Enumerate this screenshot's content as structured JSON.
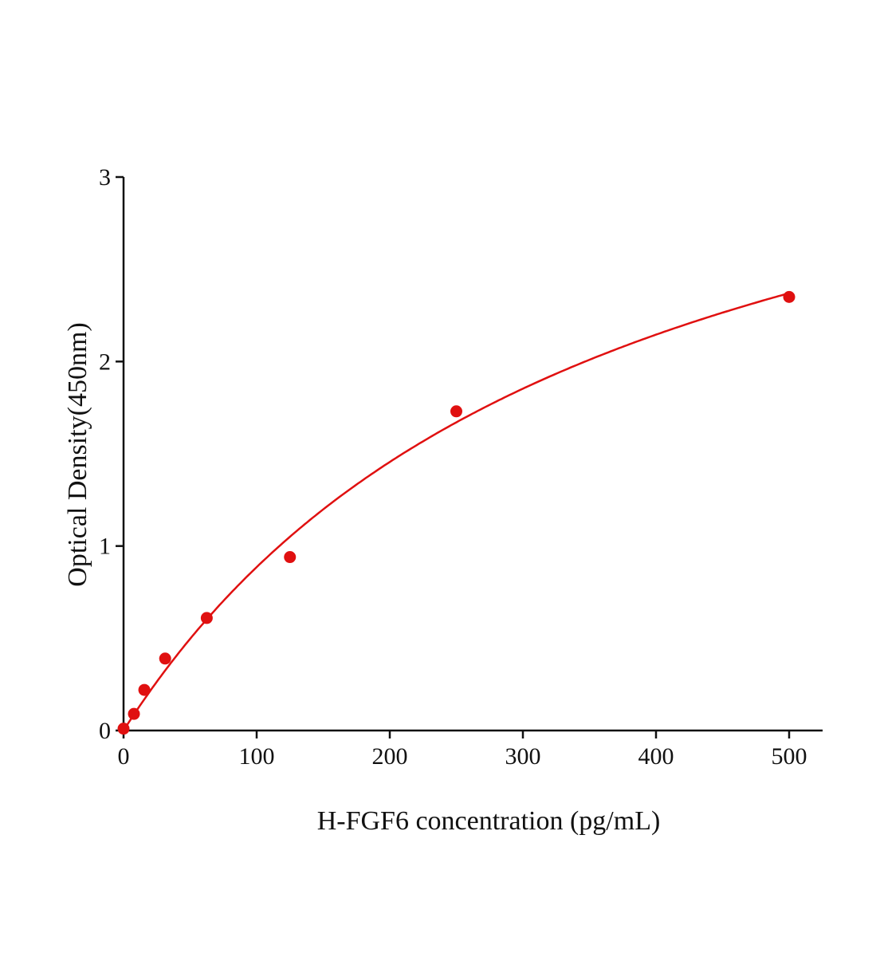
{
  "chart_data": {
    "type": "scatter",
    "title": "",
    "xlabel": "H-FGF6 concentration (pg/mL)",
    "ylabel": "Optical Density(450nm)",
    "xlim": [
      0,
      525
    ],
    "ylim": [
      0,
      3
    ],
    "xticks": [
      "0",
      "100",
      "200",
      "300",
      "400",
      "500"
    ],
    "yticks": [
      "0",
      "1",
      "2",
      "3"
    ],
    "grid": false,
    "legend": "none",
    "color": "#e01010",
    "series": [
      {
        "x": [
          0,
          7.8,
          15.6,
          31.25,
          62.5,
          125,
          250,
          500
        ],
        "y": [
          0.01,
          0.09,
          0.22,
          0.39,
          0.61,
          0.94,
          1.73,
          2.35
        ],
        "fit_curve": true
      }
    ]
  }
}
